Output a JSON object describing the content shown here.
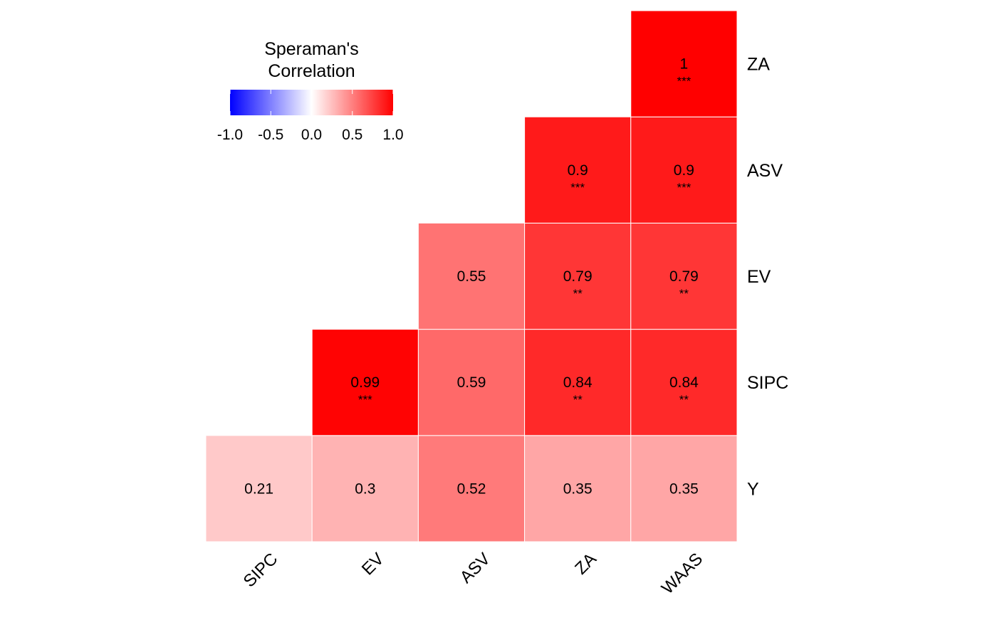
{
  "chart_data": {
    "type": "heatmap",
    "x_categories": [
      "SIPC",
      "EV",
      "ASV",
      "ZA",
      "WAAS"
    ],
    "y_categories": [
      "Y",
      "SIPC",
      "EV",
      "ASV",
      "ZA"
    ],
    "cells": [
      {
        "x": "SIPC",
        "y": "Y",
        "value": 0.21,
        "label": "0.21",
        "stars": ""
      },
      {
        "x": "EV",
        "y": "Y",
        "value": 0.3,
        "label": "0.3",
        "stars": ""
      },
      {
        "x": "ASV",
        "y": "Y",
        "value": 0.52,
        "label": "0.52",
        "stars": ""
      },
      {
        "x": "ZA",
        "y": "Y",
        "value": 0.35,
        "label": "0.35",
        "stars": ""
      },
      {
        "x": "WAAS",
        "y": "Y",
        "value": 0.35,
        "label": "0.35",
        "stars": ""
      },
      {
        "x": "EV",
        "y": "SIPC",
        "value": 0.99,
        "label": "0.99",
        "stars": "***"
      },
      {
        "x": "ASV",
        "y": "SIPC",
        "value": 0.59,
        "label": "0.59",
        "stars": ""
      },
      {
        "x": "ZA",
        "y": "SIPC",
        "value": 0.84,
        "label": "0.84",
        "stars": "**"
      },
      {
        "x": "WAAS",
        "y": "SIPC",
        "value": 0.84,
        "label": "0.84",
        "stars": "**"
      },
      {
        "x": "ASV",
        "y": "EV",
        "value": 0.55,
        "label": "0.55",
        "stars": ""
      },
      {
        "x": "ZA",
        "y": "EV",
        "value": 0.79,
        "label": "0.79",
        "stars": "**"
      },
      {
        "x": "WAAS",
        "y": "EV",
        "value": 0.79,
        "label": "0.79",
        "stars": "**"
      },
      {
        "x": "ZA",
        "y": "ASV",
        "value": 0.9,
        "label": "0.9",
        "stars": "***"
      },
      {
        "x": "WAAS",
        "y": "ASV",
        "value": 0.9,
        "label": "0.9",
        "stars": "***"
      },
      {
        "x": "WAAS",
        "y": "ZA",
        "value": 1,
        "label": "1",
        "stars": "***"
      }
    ],
    "legend": {
      "title_lines": [
        "Speraman's",
        "Correlation"
      ],
      "ticks": [
        -1.0,
        -0.5,
        0.0,
        0.5,
        1.0
      ],
      "tick_labels": [
        "-1.0",
        "-0.5",
        "0.0",
        "0.5",
        "1.0"
      ],
      "range": [
        -1,
        1
      ],
      "colors": {
        "low": "#0000ff",
        "mid": "#ffffff",
        "high": "#ff0000"
      },
      "placement": "top-left"
    },
    "x_label_rotation": "45 degrees",
    "grid": false
  }
}
